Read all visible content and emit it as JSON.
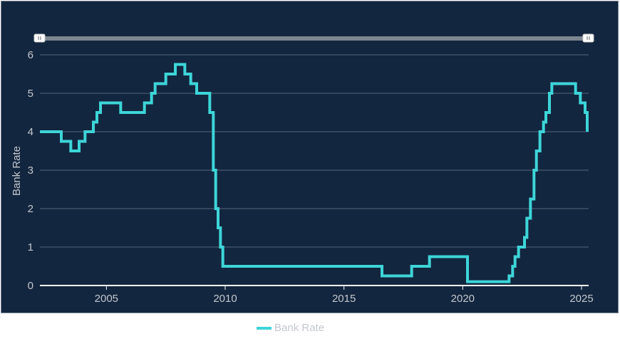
{
  "chart_data": {
    "type": "line",
    "step": true,
    "title": "",
    "xlabel": "",
    "ylabel": "Bank Rate",
    "xlim": [
      2002.2,
      2025.3
    ],
    "ylim": [
      0,
      6
    ],
    "x_ticks": [
      "2005",
      "2010",
      "2015",
      "2020",
      "2025"
    ],
    "y_ticks": [
      "0",
      "1",
      "2",
      "3",
      "4",
      "5",
      "6"
    ],
    "grid": true,
    "legend_position": "bottom",
    "series": [
      {
        "name": "Bank Rate",
        "color": "#3dd5d8",
        "points": [
          [
            2002.2,
            4.0
          ],
          [
            2003.1,
            3.75
          ],
          [
            2003.5,
            3.5
          ],
          [
            2003.85,
            3.75
          ],
          [
            2004.1,
            4.0
          ],
          [
            2004.45,
            4.25
          ],
          [
            2004.6,
            4.5
          ],
          [
            2004.75,
            4.75
          ],
          [
            2005.6,
            4.5
          ],
          [
            2006.6,
            4.75
          ],
          [
            2006.9,
            5.0
          ],
          [
            2007.05,
            5.25
          ],
          [
            2007.5,
            5.5
          ],
          [
            2007.9,
            5.75
          ],
          [
            2008.3,
            5.5
          ],
          [
            2008.55,
            5.25
          ],
          [
            2008.8,
            5.0
          ],
          [
            2009.35,
            4.5
          ],
          [
            2009.5,
            3.0
          ],
          [
            2009.6,
            2.0
          ],
          [
            2009.7,
            1.5
          ],
          [
            2009.8,
            1.0
          ],
          [
            2009.9,
            0.5
          ],
          [
            2016.6,
            0.25
          ],
          [
            2017.85,
            0.5
          ],
          [
            2018.6,
            0.75
          ],
          [
            2020.2,
            0.1
          ],
          [
            2021.95,
            0.25
          ],
          [
            2022.1,
            0.5
          ],
          [
            2022.2,
            0.75
          ],
          [
            2022.35,
            1.0
          ],
          [
            2022.6,
            1.25
          ],
          [
            2022.7,
            1.75
          ],
          [
            2022.85,
            2.25
          ],
          [
            2023.0,
            3.0
          ],
          [
            2023.1,
            3.5
          ],
          [
            2023.25,
            4.0
          ],
          [
            2023.4,
            4.25
          ],
          [
            2023.5,
            4.5
          ],
          [
            2023.65,
            5.0
          ],
          [
            2023.75,
            5.25
          ],
          [
            2024.75,
            5.0
          ],
          [
            2024.95,
            4.75
          ],
          [
            2025.15,
            4.5
          ],
          [
            2025.35,
            4.25
          ],
          [
            2025.45,
            4.0
          ]
        ]
      }
    ]
  },
  "chart": {
    "ylabel": "Bank Rate",
    "legend_label": "Bank Rate",
    "x_ticks": [
      "2005",
      "2010",
      "2015",
      "2020",
      "2025"
    ],
    "y_ticks": [
      "0",
      "1",
      "2",
      "3",
      "4",
      "5",
      "6"
    ]
  },
  "navigator": {
    "left_handle": "||",
    "right_handle": "||"
  }
}
